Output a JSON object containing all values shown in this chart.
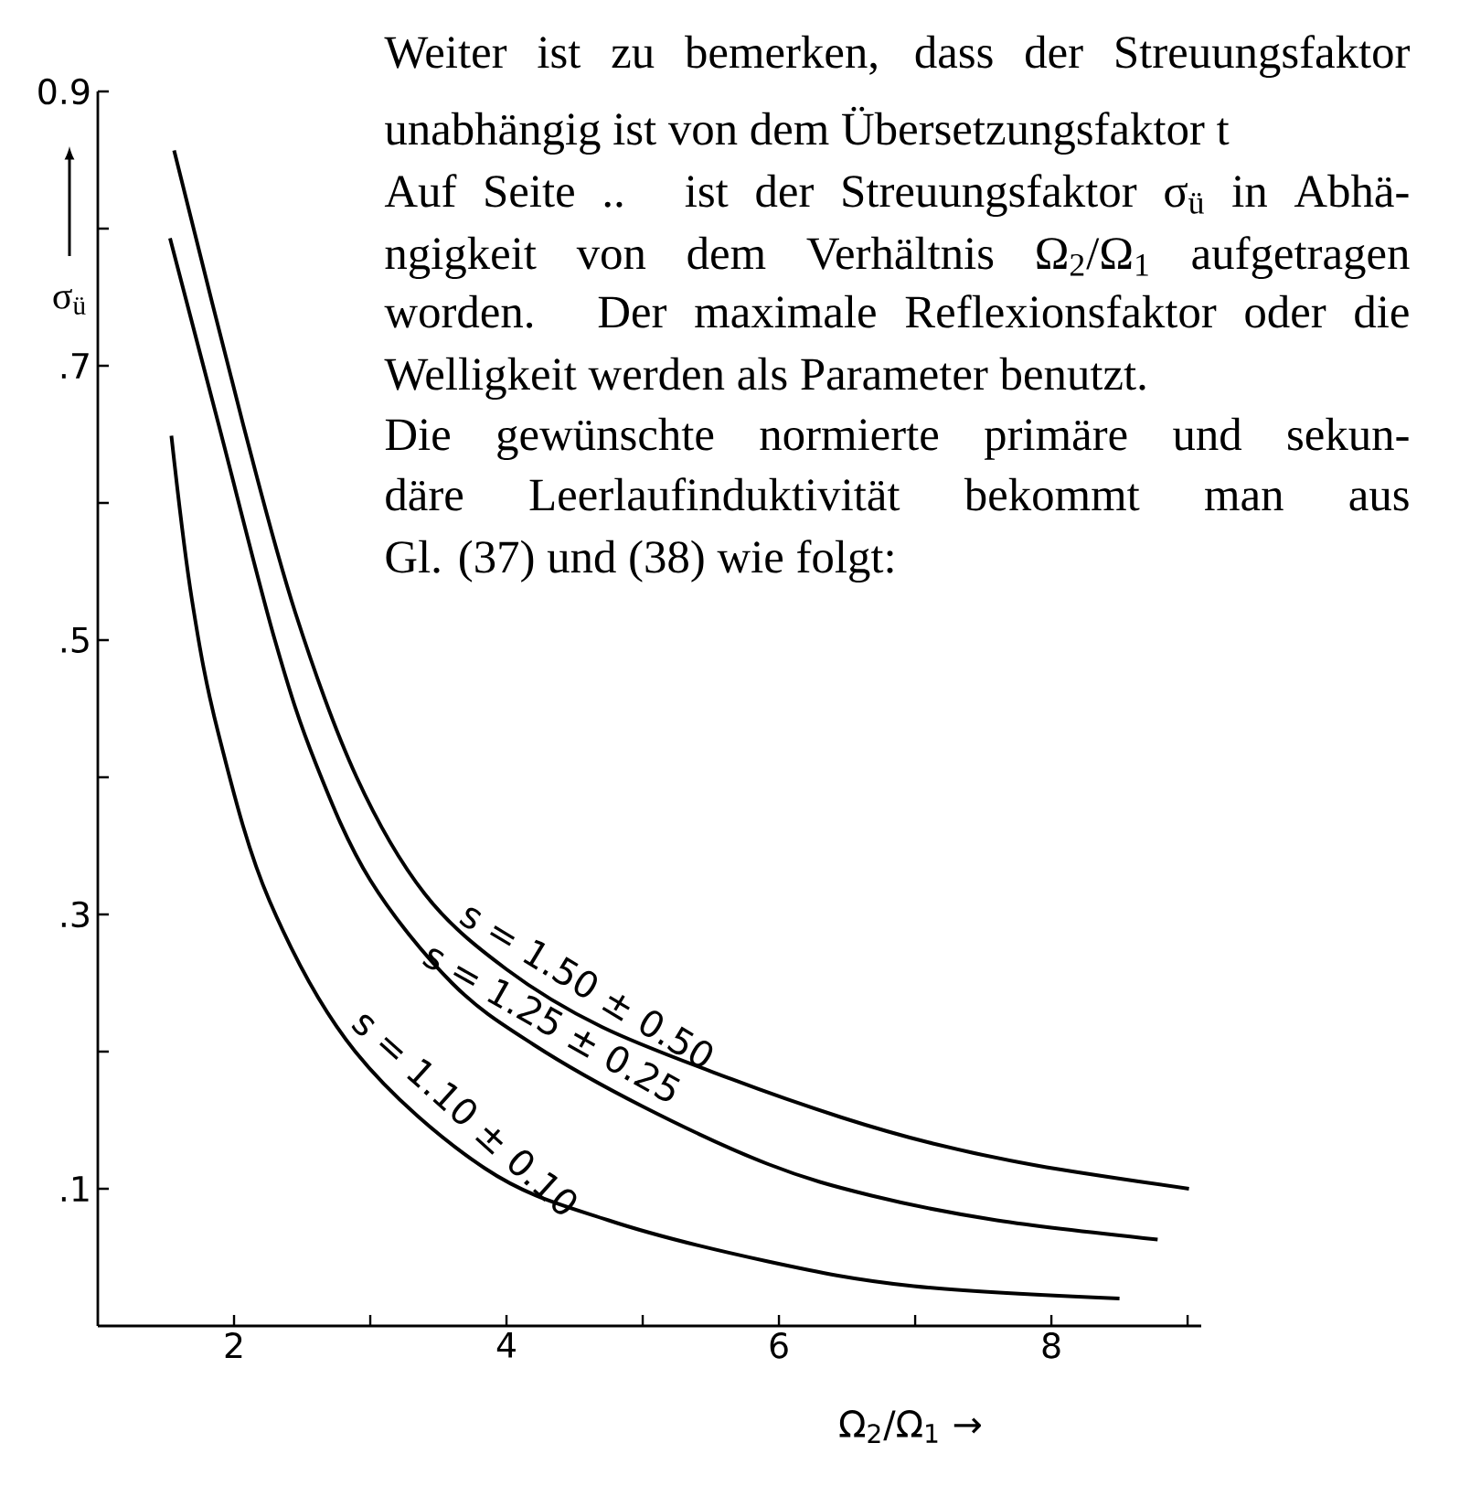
{
  "chart_data": {
    "type": "line",
    "xlabel": "Ω$_{2}$/Ω$_{1}$ →",
    "ylabel": "σ$_{ü}$",
    "xlim": [
      1,
      9.1
    ],
    "ylim": [
      0,
      0.9
    ],
    "xticks": [
      2,
      {
        "value": 3,
        "label": null
      },
      4,
      {
        "value": 5,
        "label": null
      },
      6,
      {
        "value": 7,
        "label": null
      },
      8,
      {
        "value": 9,
        "label": null
      }
    ],
    "yticks": [
      {
        "value": 0.1,
        "label": ".1"
      },
      {
        "value": 0.2,
        "label": null
      },
      {
        "value": 0.3,
        "label": ".3"
      },
      {
        "value": 0.4,
        "label": null
      },
      {
        "value": 0.5,
        "label": ".5"
      },
      {
        "value": 0.6,
        "label": null
      },
      {
        "value": 0.7,
        "label": ".7"
      },
      {
        "value": 0.8,
        "label": null
      },
      0.9
    ],
    "series": [
      {
        "name": "s = 1.50 ± 0.50",
        "color": "#000000",
        "x": [
          1.56,
          2.07,
          2.45,
          2.9,
          3.4,
          4.0,
          4.7,
          5.65,
          6.46,
          7.13,
          7.89,
          9.01
        ],
        "values": [
          0.857,
          0.656,
          0.52,
          0.4,
          0.315,
          0.26,
          0.218,
          0.18,
          0.152,
          0.133,
          0.117,
          0.1
        ]
      },
      {
        "name": "s = 1.25 ± 0.25",
        "color": "#000000",
        "x": [
          1.53,
          1.89,
          2.3,
          2.6,
          3.0,
          3.6,
          4.2,
          5.0,
          5.92,
          6.68,
          7.6,
          8.78
        ],
        "values": [
          0.793,
          0.656,
          0.5,
          0.41,
          0.325,
          0.25,
          0.205,
          0.16,
          0.118,
          0.095,
          0.077,
          0.063
        ]
      },
      {
        "name": "s = 1.10 ± 0.10",
        "color": "#000000",
        "x": [
          1.54,
          1.69,
          1.89,
          2.26,
          2.89,
          3.84,
          4.75,
          5.92,
          6.99,
          8.5
        ],
        "values": [
          0.649,
          0.53,
          0.43,
          0.31,
          0.2,
          0.115,
          0.077,
          0.047,
          0.029,
          0.02
        ]
      }
    ],
    "annotations": [
      "Weiter ist zu bemerken, dass der Streuungsfaktor",
      "unabhängig ist von dem Übersetzungsfaktor t",
      "Auf Seite .. ist der Streuungsfaktor σ$_{ü}$ in Abhä-",
      "ngigkeit von dem Verhältnis Ω$_{2}$/Ω$_{1}$ aufgetragen",
      "worden. Der maximale Reflexionsfaktor oder die",
      "Welligkeit werden als Parameter benutzt.",
      "Die gewünschte normierte primäre und sekun-",
      "däre Leerlaufinduktivität bekommt man aus",
      "Gl. (37) und (38) wie folgt:"
    ]
  }
}
